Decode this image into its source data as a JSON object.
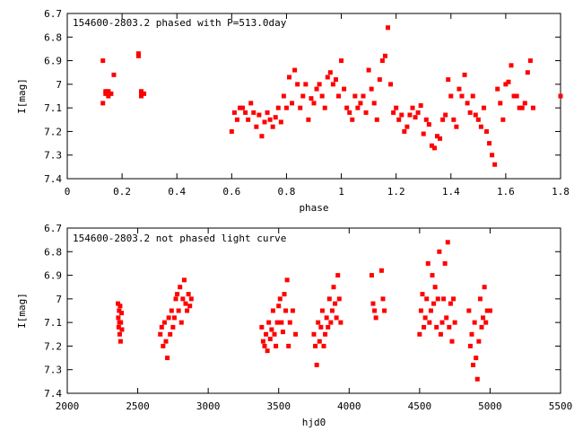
{
  "colors": {
    "points": "#ff0000",
    "axes": "#000000",
    "background": "#ffffff"
  },
  "chart_data": [
    {
      "type": "scatter",
      "title": "154600-2803.2 phased with P=513.0day",
      "xlabel": "phase",
      "ylabel": "I[mag]",
      "xlim": [
        0,
        1.8
      ],
      "ylim": [
        6.7,
        7.4
      ],
      "y_inverted": true,
      "grid": false,
      "legend": "none",
      "xticks": [
        "0",
        "0.2",
        "0.4",
        "0.6",
        "0.8",
        "1",
        "1.2",
        "1.4",
        "1.6",
        "1.8"
      ],
      "yticks": [
        "6.7",
        "6.8",
        "6.9",
        "7",
        "7.1",
        "7.2",
        "7.3",
        "7.4"
      ],
      "x": [
        0.13,
        0.13,
        0.14,
        0.14,
        0.15,
        0.15,
        0.16,
        0.17,
        0.26,
        0.26,
        0.27,
        0.27,
        0.27,
        0.28,
        0.6,
        0.61,
        0.62,
        0.63,
        0.64,
        0.65,
        0.66,
        0.67,
        0.68,
        0.69,
        0.7,
        0.71,
        0.72,
        0.73,
        0.74,
        0.75,
        0.76,
        0.77,
        0.78,
        0.79,
        0.8,
        0.81,
        0.82,
        0.83,
        0.84,
        0.85,
        0.86,
        0.87,
        0.88,
        0.89,
        0.9,
        0.91,
        0.92,
        0.93,
        0.94,
        0.95,
        0.96,
        0.97,
        0.98,
        0.99,
        1.0,
        1.01,
        1.02,
        1.03,
        1.04,
        1.05,
        1.06,
        1.07,
        1.08,
        1.09,
        1.1,
        1.11,
        1.12,
        1.13,
        1.14,
        1.15,
        1.16,
        1.17,
        1.18,
        1.19,
        1.2,
        1.21,
        1.22,
        1.23,
        1.24,
        1.25,
        1.26,
        1.27,
        1.28,
        1.29,
        1.3,
        1.31,
        1.32,
        1.33,
        1.34,
        1.35,
        1.36,
        1.37,
        1.38,
        1.39,
        1.4,
        1.41,
        1.42,
        1.43,
        1.44,
        1.45,
        1.46,
        1.47,
        1.48,
        1.49,
        1.5,
        1.51,
        1.52,
        1.53,
        1.54,
        1.55,
        1.56,
        1.57,
        1.58,
        1.59,
        1.6,
        1.61,
        1.62,
        1.63,
        1.64,
        1.65,
        1.66,
        1.67,
        1.68,
        1.69,
        1.7,
        1.8
      ],
      "y": [
        6.9,
        7.08,
        7.04,
        7.03,
        7.05,
        7.03,
        7.04,
        6.96,
        6.87,
        6.88,
        7.05,
        7.03,
        7.04,
        7.04,
        7.2,
        7.12,
        7.15,
        7.1,
        7.1,
        7.12,
        7.15,
        7.08,
        7.12,
        7.18,
        7.13,
        7.22,
        7.16,
        7.12,
        7.15,
        7.18,
        7.14,
        7.1,
        7.16,
        7.05,
        7.1,
        6.97,
        7.08,
        6.94,
        7.0,
        7.1,
        7.05,
        7.0,
        7.15,
        7.06,
        7.08,
        7.02,
        7.0,
        7.05,
        7.1,
        6.97,
        6.95,
        7.0,
        6.98,
        7.05,
        6.9,
        7.02,
        7.1,
        7.12,
        7.15,
        7.05,
        7.1,
        7.08,
        7.05,
        7.12,
        6.94,
        7.02,
        7.08,
        7.15,
        6.98,
        6.9,
        6.88,
        6.76,
        7.0,
        7.12,
        7.1,
        7.15,
        7.13,
        7.2,
        7.18,
        7.13,
        7.1,
        7.14,
        7.12,
        7.09,
        7.21,
        7.15,
        7.17,
        7.26,
        7.27,
        7.22,
        7.23,
        7.15,
        7.13,
        6.98,
        7.05,
        7.15,
        7.18,
        7.02,
        7.05,
        6.96,
        7.08,
        7.12,
        7.05,
        7.13,
        7.15,
        7.18,
        7.1,
        7.2,
        7.25,
        7.3,
        7.34,
        7.02,
        7.08,
        7.15,
        7.0,
        6.99,
        6.92,
        7.05,
        7.05,
        7.1,
        7.1,
        7.08,
        6.95,
        6.9,
        7.1,
        7.05
      ]
    },
    {
      "type": "scatter",
      "title": "154600-2803.2 not phased light curve",
      "xlabel": "hjd0",
      "ylabel": "I[mag]",
      "xlim": [
        2000,
        5500
      ],
      "ylim": [
        6.7,
        7.4
      ],
      "y_inverted": true,
      "grid": false,
      "legend": "none",
      "xticks": [
        "2000",
        "2500",
        "3000",
        "3500",
        "4000",
        "4500",
        "5000",
        "5500"
      ],
      "yticks": [
        "6.7",
        "6.8",
        "6.9",
        "7",
        "7.1",
        "7.2",
        "7.3",
        "7.4"
      ],
      "x": [
        2360,
        2362,
        2365,
        2368,
        2370,
        2372,
        2375,
        2378,
        2380,
        2385,
        2388,
        2660,
        2670,
        2680,
        2690,
        2700,
        2710,
        2720,
        2730,
        2740,
        2750,
        2760,
        2770,
        2780,
        2790,
        2800,
        2810,
        2820,
        2830,
        2840,
        2850,
        2860,
        2870,
        2880,
        3380,
        3390,
        3400,
        3410,
        3420,
        3430,
        3440,
        3450,
        3460,
        3470,
        3480,
        3490,
        3500,
        3510,
        3520,
        3530,
        3540,
        3550,
        3560,
        3570,
        3580,
        3600,
        3620,
        3750,
        3760,
        3770,
        3780,
        3790,
        3800,
        3810,
        3820,
        3830,
        3840,
        3850,
        3860,
        3870,
        3880,
        3890,
        3900,
        3910,
        3920,
        3930,
        3940,
        4160,
        4170,
        4180,
        4190,
        4230,
        4240,
        4250,
        4500,
        4510,
        4520,
        4530,
        4540,
        4550,
        4560,
        4570,
        4580,
        4590,
        4600,
        4610,
        4620,
        4630,
        4640,
        4650,
        4660,
        4670,
        4680,
        4690,
        4700,
        4710,
        4720,
        4730,
        4740,
        4750,
        4850,
        4860,
        4870,
        4880,
        4890,
        4900,
        4910,
        4920,
        4930,
        4940,
        4950,
        4960,
        4970,
        4980,
        5000
      ],
      "y": [
        7.02,
        7.08,
        7.12,
        7.05,
        7.1,
        7.15,
        7.03,
        7.18,
        7.1,
        7.06,
        7.13,
        7.15,
        7.12,
        7.2,
        7.1,
        7.18,
        7.25,
        7.08,
        7.15,
        7.05,
        7.12,
        7.08,
        7.0,
        6.98,
        7.05,
        6.95,
        7.1,
        7.0,
        6.92,
        7.02,
        7.05,
        6.98,
        7.03,
        7.0,
        7.12,
        7.18,
        7.2,
        7.15,
        7.22,
        7.1,
        7.17,
        7.13,
        7.05,
        7.15,
        7.2,
        7.1,
        7.03,
        7.0,
        7.1,
        7.14,
        6.98,
        7.05,
        6.92,
        7.2,
        7.1,
        7.05,
        7.15,
        7.15,
        7.2,
        7.28,
        7.1,
        7.18,
        7.12,
        7.05,
        7.2,
        7.15,
        7.08,
        7.12,
        7.0,
        7.1,
        7.05,
        6.95,
        7.02,
        7.08,
        6.9,
        7.0,
        7.1,
        6.9,
        7.02,
        7.05,
        7.08,
        6.88,
        7.0,
        7.05,
        7.15,
        7.05,
        6.98,
        7.12,
        7.08,
        7.0,
        6.85,
        7.1,
        7.05,
        6.9,
        7.02,
        6.95,
        7.12,
        7.0,
        6.8,
        7.15,
        7.1,
        7.0,
        6.85,
        7.08,
        6.76,
        7.12,
        7.02,
        7.18,
        7.0,
        7.1,
        7.05,
        7.2,
        7.15,
        7.28,
        7.1,
        7.25,
        7.34,
        7.18,
        7.0,
        7.12,
        7.08,
        6.95,
        7.1,
        7.05,
        7.05
      ]
    }
  ]
}
